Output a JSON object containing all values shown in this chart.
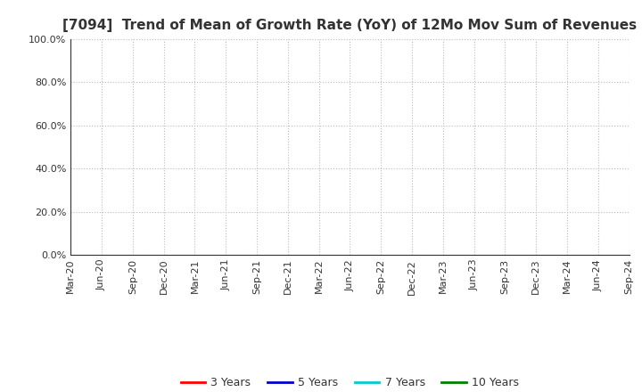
{
  "title": "[7094]  Trend of Mean of Growth Rate (YoY) of 12Mo Mov Sum of Revenues",
  "ylim": [
    0.0,
    1.0
  ],
  "yticks": [
    0.0,
    0.2,
    0.4,
    0.6,
    0.8,
    1.0
  ],
  "ytick_labels": [
    "0.0%",
    "20.0%",
    "40.0%",
    "60.0%",
    "80.0%",
    "100.0%"
  ],
  "x_labels": [
    "Mar-20",
    "Jun-20",
    "Sep-20",
    "Dec-20",
    "Mar-21",
    "Jun-21",
    "Sep-21",
    "Dec-21",
    "Mar-22",
    "Jun-22",
    "Sep-22",
    "Dec-22",
    "Mar-23",
    "Jun-23",
    "Sep-23",
    "Dec-23",
    "Mar-24",
    "Jun-24",
    "Sep-24"
  ],
  "legend": [
    {
      "label": "3 Years",
      "color": "#ff0000",
      "lw": 2.0
    },
    {
      "label": "5 Years",
      "color": "#0000cc",
      "lw": 2.0
    },
    {
      "label": "7 Years",
      "color": "#00cccc",
      "lw": 2.0
    },
    {
      "label": "10 Years",
      "color": "#008000",
      "lw": 2.0
    }
  ],
  "background_color": "#ffffff",
  "grid_color": "#bbbbbb",
  "title_fontsize": 11,
  "tick_fontsize": 8,
  "title_color": "#333333"
}
